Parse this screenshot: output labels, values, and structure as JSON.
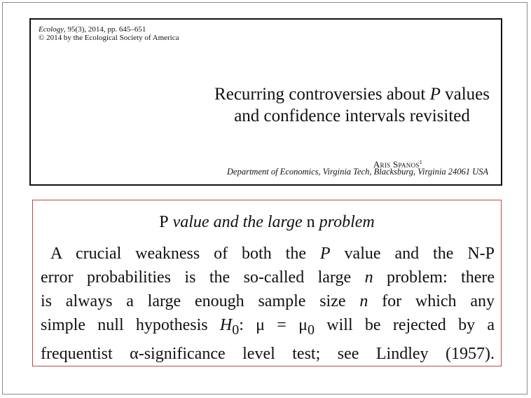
{
  "citation": {
    "journal": "Ecology",
    "rest": ", 95(3), 2014, pp. 645–651",
    "copyright": "© 2014 by the Ecological Society of America"
  },
  "paper": {
    "title_line1_pre": "Recurring controversies about ",
    "title_line1_p": "P",
    "title_line1_post": " values",
    "title_line2": "and confidence intervals revisited",
    "author": "Aris Spanos",
    "author_sup": "1",
    "affiliation": "Department of Economics, Virginia Tech, Blacksburg, Virginia 24061 USA"
  },
  "callout": {
    "heading_p": "P",
    "heading_mid": " value and the large ",
    "heading_n": "n",
    "heading_end": " problem",
    "line1_a": "A crucial weakness of both the ",
    "line1_p": "P",
    "line1_b": " value and the N-P",
    "line2_a": "error probabilities is the so-called large ",
    "line2_n": "n",
    "line2_b": " problem: there",
    "line3_a": "is always a large enough sample size ",
    "line3_n": "n",
    "line3_b": " for which any",
    "line4_a": "simple null hypothesis ",
    "line4_h": "H",
    "line4_sub": "0",
    "line4_b": ": μ = μ",
    "line4_sub2": "0",
    "line4_c": " will be rejected by a",
    "line5": "frequentist α-significance level test; see Lindley (1957)."
  }
}
